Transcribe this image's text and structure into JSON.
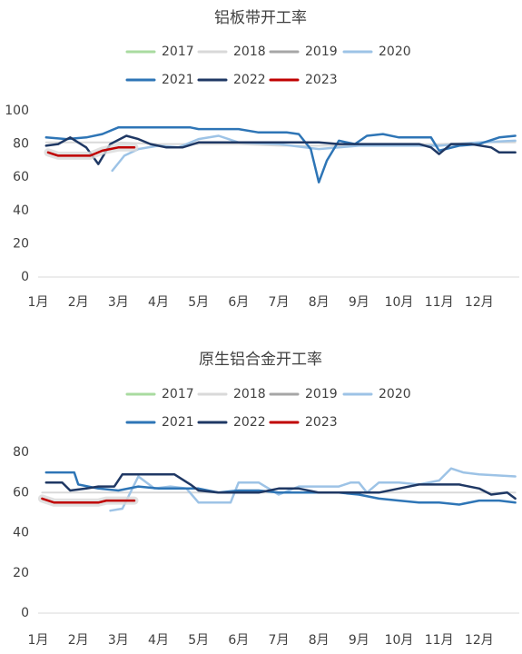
{
  "chart_data": [
    {
      "type": "line",
      "title": "铝板带开工率",
      "legend": [
        "2017",
        "2018",
        "2019",
        "2020",
        "2021",
        "2022",
        "2023"
      ],
      "ylim": [
        0,
        100
      ],
      "yticks": [
        "0",
        "20",
        "40",
        "60",
        "80",
        "100"
      ],
      "months": [
        "1月",
        "2月",
        "3月",
        "4月",
        "5月",
        "6月",
        "7月",
        "8月",
        "9月",
        "10月",
        "11月",
        "12月"
      ],
      "grid": false,
      "legend_position": "top",
      "x_unit": "month",
      "series": [
        {
          "name": "2017",
          "color": "#a9dba0",
          "points": []
        },
        {
          "name": "2018",
          "color": "#d9d9d9",
          "points": [
            [
              1.2,
              81
            ],
            [
              2.0,
              81
            ],
            [
              3.0,
              81
            ],
            [
              4.0,
              80
            ],
            [
              5.0,
              80
            ],
            [
              6.0,
              80
            ],
            [
              7.0,
              79
            ],
            [
              8.0,
              79
            ],
            [
              9.0,
              79
            ],
            [
              10.0,
              80
            ],
            [
              11.0,
              80
            ],
            [
              12.0,
              81
            ],
            [
              12.9,
              81
            ]
          ]
        },
        {
          "name": "2019",
          "color": "#a6a6a6",
          "points": []
        },
        {
          "name": "2020",
          "color": "#9dc3e6",
          "points": [
            [
              2.85,
              64
            ],
            [
              3.15,
              73
            ],
            [
              3.5,
              77
            ],
            [
              4.0,
              79
            ],
            [
              4.5,
              78
            ],
            [
              5.0,
              83
            ],
            [
              5.5,
              85
            ],
            [
              6.0,
              81
            ],
            [
              7.0,
              80
            ],
            [
              8.0,
              77
            ],
            [
              8.5,
              78
            ],
            [
              9.0,
              79
            ],
            [
              10.0,
              79
            ],
            [
              10.6,
              79
            ],
            [
              11.0,
              79
            ],
            [
              11.5,
              80
            ],
            [
              12.0,
              81
            ],
            [
              12.9,
              82
            ]
          ]
        },
        {
          "name": "2021",
          "color": "#2e75b6",
          "points": [
            [
              1.2,
              84
            ],
            [
              1.7,
              83
            ],
            [
              2.2,
              84
            ],
            [
              2.6,
              86
            ],
            [
              3.0,
              90
            ],
            [
              4.0,
              90
            ],
            [
              4.8,
              90
            ],
            [
              5.0,
              89
            ],
            [
              6.0,
              89
            ],
            [
              6.5,
              87
            ],
            [
              7.2,
              87
            ],
            [
              7.5,
              86
            ],
            [
              7.8,
              77
            ],
            [
              8.0,
              57
            ],
            [
              8.2,
              70
            ],
            [
              8.5,
              82
            ],
            [
              8.9,
              80
            ],
            [
              9.2,
              85
            ],
            [
              9.6,
              86
            ],
            [
              10.0,
              84
            ],
            [
              10.5,
              84
            ],
            [
              10.8,
              84
            ],
            [
              11.0,
              76
            ],
            [
              11.5,
              79
            ],
            [
              12.0,
              80
            ],
            [
              12.5,
              84
            ],
            [
              12.9,
              85
            ]
          ]
        },
        {
          "name": "2022",
          "color": "#1f3864",
          "points": [
            [
              1.2,
              79
            ],
            [
              1.5,
              80
            ],
            [
              1.8,
              84
            ],
            [
              2.2,
              78
            ],
            [
              2.5,
              68
            ],
            [
              2.8,
              80
            ],
            [
              3.2,
              85
            ],
            [
              3.5,
              83
            ],
            [
              3.8,
              80
            ],
            [
              4.2,
              78
            ],
            [
              4.6,
              78
            ],
            [
              5.0,
              81
            ],
            [
              6.0,
              81
            ],
            [
              7.0,
              81
            ],
            [
              8.0,
              81
            ],
            [
              8.5,
              80
            ],
            [
              9.0,
              80
            ],
            [
              10.0,
              80
            ],
            [
              10.5,
              80
            ],
            [
              10.8,
              78
            ],
            [
              11.0,
              74
            ],
            [
              11.3,
              80
            ],
            [
              11.8,
              80
            ],
            [
              12.3,
              78
            ],
            [
              12.5,
              75
            ],
            [
              12.9,
              75
            ]
          ]
        },
        {
          "name": "2023",
          "color": "#c00000",
          "points": [
            [
              1.25,
              75
            ],
            [
              1.5,
              73
            ],
            [
              2.0,
              73
            ],
            [
              2.3,
              73
            ],
            [
              2.6,
              76
            ],
            [
              3.0,
              78
            ],
            [
              3.4,
              78
            ]
          ]
        }
      ]
    },
    {
      "type": "line",
      "title": "原生铝合金开工率",
      "legend": [
        "2017",
        "2018",
        "2019",
        "2020",
        "2021",
        "2022",
        "2023"
      ],
      "ylim": [
        0,
        80
      ],
      "yticks": [
        "0",
        "20",
        "40",
        "60",
        "80"
      ],
      "months": [
        "1月",
        "2月",
        "3月",
        "4月",
        "5月",
        "6月",
        "7月",
        "8月",
        "9月",
        "10月",
        "11月",
        "12月"
      ],
      "grid": false,
      "legend_position": "top",
      "x_unit": "month",
      "series": [
        {
          "name": "2017",
          "color": "#a9dba0",
          "points": []
        },
        {
          "name": "2018",
          "color": "#d9d9d9",
          "points": [
            [
              1.1,
              60
            ],
            [
              2.0,
              60
            ],
            [
              3.0,
              60
            ],
            [
              4.0,
              60
            ],
            [
              5.0,
              60
            ],
            [
              6.0,
              60
            ],
            [
              7.0,
              60
            ],
            [
              8.0,
              60
            ],
            [
              9.0,
              60
            ],
            [
              10.0,
              60
            ],
            [
              11.0,
              60
            ],
            [
              12.0,
              60
            ],
            [
              12.9,
              60
            ]
          ]
        },
        {
          "name": "2019",
          "color": "#a6a6a6",
          "points": []
        },
        {
          "name": "2020",
          "color": "#9dc3e6",
          "points": [
            [
              2.8,
              51
            ],
            [
              3.1,
              52
            ],
            [
              3.5,
              68
            ],
            [
              3.9,
              62
            ],
            [
              4.3,
              63
            ],
            [
              4.7,
              62
            ],
            [
              5.0,
              55
            ],
            [
              5.5,
              55
            ],
            [
              5.8,
              55
            ],
            [
              6.0,
              65
            ],
            [
              6.5,
              65
            ],
            [
              7.0,
              59
            ],
            [
              7.5,
              63
            ],
            [
              8.0,
              63
            ],
            [
              8.5,
              63
            ],
            [
              8.8,
              65
            ],
            [
              9.0,
              65
            ],
            [
              9.2,
              60
            ],
            [
              9.5,
              65
            ],
            [
              10.0,
              65
            ],
            [
              10.5,
              64
            ],
            [
              11.0,
              66
            ],
            [
              11.3,
              72
            ],
            [
              11.6,
              70
            ],
            [
              12.0,
              69
            ],
            [
              12.9,
              68
            ]
          ]
        },
        {
          "name": "2021",
          "color": "#2e75b6",
          "points": [
            [
              1.2,
              70
            ],
            [
              1.6,
              70
            ],
            [
              1.9,
              70
            ],
            [
              2.0,
              64
            ],
            [
              2.5,
              62
            ],
            [
              3.0,
              61
            ],
            [
              3.5,
              63
            ],
            [
              4.0,
              62
            ],
            [
              4.5,
              62
            ],
            [
              5.0,
              62
            ],
            [
              5.5,
              60
            ],
            [
              6.0,
              61
            ],
            [
              6.5,
              61
            ],
            [
              7.0,
              60
            ],
            [
              7.5,
              60
            ],
            [
              8.0,
              60
            ],
            [
              8.5,
              60
            ],
            [
              9.0,
              59
            ],
            [
              9.5,
              57
            ],
            [
              10.0,
              56
            ],
            [
              10.5,
              55
            ],
            [
              11.0,
              55
            ],
            [
              11.5,
              54
            ],
            [
              12.0,
              56
            ],
            [
              12.5,
              56
            ],
            [
              12.9,
              55
            ]
          ]
        },
        {
          "name": "2022",
          "color": "#1f3864",
          "points": [
            [
              1.2,
              65
            ],
            [
              1.6,
              65
            ],
            [
              1.8,
              61
            ],
            [
              2.2,
              62
            ],
            [
              2.5,
              63
            ],
            [
              2.9,
              63
            ],
            [
              3.1,
              69
            ],
            [
              3.5,
              69
            ],
            [
              4.0,
              69
            ],
            [
              4.4,
              69
            ],
            [
              4.8,
              64
            ],
            [
              5.0,
              61
            ],
            [
              5.5,
              60
            ],
            [
              6.0,
              60
            ],
            [
              6.5,
              60
            ],
            [
              7.0,
              62
            ],
            [
              7.5,
              62
            ],
            [
              8.0,
              60
            ],
            [
              8.5,
              60
            ],
            [
              9.0,
              60
            ],
            [
              9.5,
              60
            ],
            [
              10.0,
              62
            ],
            [
              10.5,
              64
            ],
            [
              11.0,
              64
            ],
            [
              11.5,
              64
            ],
            [
              12.0,
              62
            ],
            [
              12.3,
              59
            ],
            [
              12.7,
              60
            ],
            [
              12.9,
              57
            ]
          ]
        },
        {
          "name": "2023",
          "color": "#c00000",
          "points": [
            [
              1.1,
              57
            ],
            [
              1.4,
              55
            ],
            [
              2.0,
              55
            ],
            [
              2.5,
              55
            ],
            [
              2.7,
              56
            ],
            [
              3.0,
              56
            ],
            [
              3.4,
              56
            ]
          ]
        }
      ]
    }
  ]
}
